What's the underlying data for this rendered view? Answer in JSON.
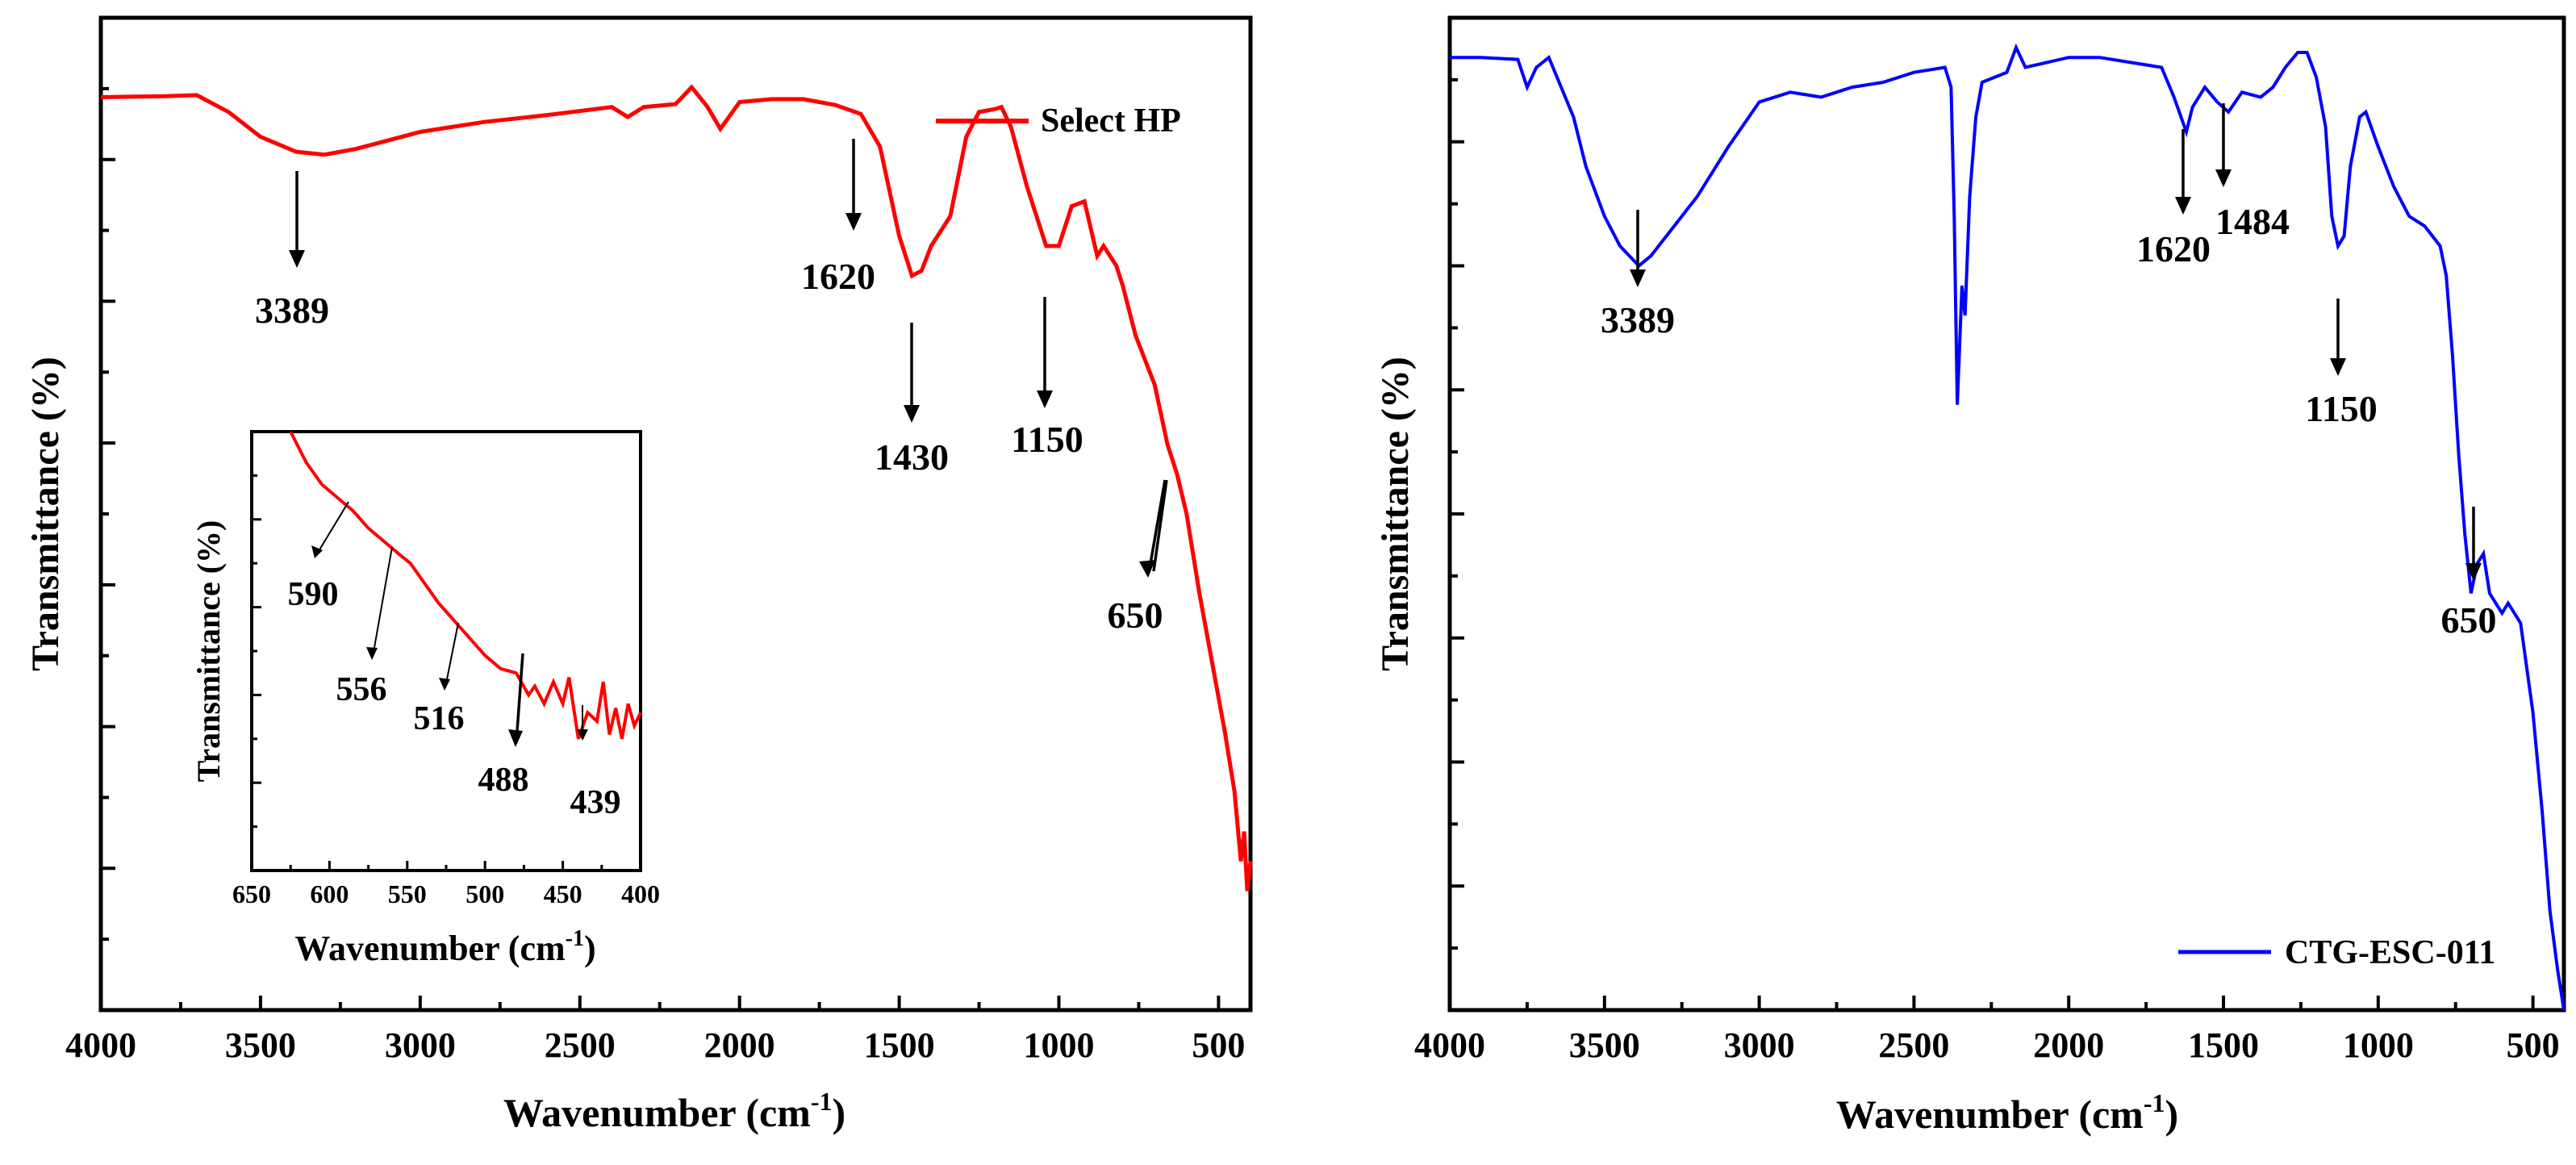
{
  "chart_data": [
    {
      "id": "left",
      "type": "line",
      "title": "",
      "xlabel": "Wavenumber (cm",
      "xlabel_sup": "-1",
      "xlabel_close": ")",
      "ylabel": "Transmittance (%)",
      "xlim": [
        4000,
        400
      ],
      "ylim": [
        0,
        100
      ],
      "x_ticks": [
        4000,
        3500,
        3000,
        2500,
        2000,
        1500,
        1000,
        500
      ],
      "x_ticklabels": [
        "4000",
        "3500",
        "3000",
        "2500",
        "2000",
        "1500",
        "1000",
        "500"
      ],
      "legend": {
        "label": "Select HP",
        "position": "top-right"
      },
      "series": [
        {
          "name": "Select HP",
          "color": "#ff0000",
          "points": [
            [
              4000,
              92
            ],
            [
              3800,
              92.1
            ],
            [
              3700,
              92.2
            ],
            [
              3600,
              90.5
            ],
            [
              3500,
              88
            ],
            [
              3389,
              86.5
            ],
            [
              3300,
              86.2
            ],
            [
              3200,
              86.8
            ],
            [
              3000,
              88.5
            ],
            [
              2800,
              89.5
            ],
            [
              2600,
              90.2
            ],
            [
              2400,
              91
            ],
            [
              2350,
              90
            ],
            [
              2300,
              91
            ],
            [
              2200,
              91.3
            ],
            [
              2150,
              93
            ],
            [
              2100,
              91
            ],
            [
              2060,
              88.8
            ],
            [
              2000,
              91.5
            ],
            [
              1900,
              91.8
            ],
            [
              1800,
              91.8
            ],
            [
              1700,
              91.2
            ],
            [
              1620,
              90.3
            ],
            [
              1560,
              87
            ],
            [
              1500,
              78
            ],
            [
              1460,
              74
            ],
            [
              1430,
              74.5
            ],
            [
              1400,
              77
            ],
            [
              1340,
              80
            ],
            [
              1290,
              88
            ],
            [
              1250,
              90.5
            ],
            [
              1200,
              90.8
            ],
            [
              1180,
              91
            ],
            [
              1150,
              89
            ],
            [
              1100,
              83
            ],
            [
              1040,
              77
            ],
            [
              1000,
              77
            ],
            [
              960,
              81
            ],
            [
              920,
              81.5
            ],
            [
              880,
              76
            ],
            [
              860,
              77
            ],
            [
              820,
              75
            ],
            [
              800,
              73
            ],
            [
              760,
              68
            ],
            [
              700,
              63
            ],
            [
              660,
              57
            ],
            [
              630,
              54
            ],
            [
              600,
              50
            ],
            [
              560,
              42
            ],
            [
              520,
              35
            ],
            [
              480,
              28
            ],
            [
              450,
              22
            ],
            [
              430,
              15
            ],
            [
              420,
              18
            ],
            [
              410,
              12
            ],
            [
              400,
              15
            ]
          ]
        }
      ],
      "annotations": [
        {
          "label": "3389",
          "x": 3389
        },
        {
          "label": "1620",
          "x": 1620
        },
        {
          "label": "1430",
          "x": 1430
        },
        {
          "label": "1150",
          "x": 1150
        },
        {
          "label": "650",
          "x": 650
        }
      ],
      "inset": {
        "type": "line",
        "xlabel": "Wavenumber (cm",
        "xlabel_sup": "-1",
        "xlabel_close": ")",
        "ylabel": "Transmittance (%)",
        "xlim": [
          650,
          400
        ],
        "ylim": [
          0,
          100
        ],
        "x_ticks": [
          650,
          600,
          550,
          500,
          450,
          400
        ],
        "x_ticklabels": [
          "650",
          "600",
          "550",
          "500",
          "450",
          "400"
        ],
        "series": [
          {
            "name": "Select HP",
            "color": "#ff0000",
            "points": [
              [
                625,
                100
              ],
              [
                615,
                93
              ],
              [
                605,
                88
              ],
              [
                595,
                85
              ],
              [
                585,
                82
              ],
              [
                575,
                78
              ],
              [
                565,
                75
              ],
              [
                555,
                72
              ],
              [
                548,
                70
              ],
              [
                540,
                66
              ],
              [
                530,
                61
              ],
              [
                520,
                57
              ],
              [
                510,
                53
              ],
              [
                500,
                49
              ],
              [
                490,
                46
              ],
              [
                480,
                45
              ],
              [
                472,
                40
              ],
              [
                468,
                42
              ],
              [
                462,
                38
              ],
              [
                456,
                43
              ],
              [
                450,
                38
              ],
              [
                446,
                44
              ],
              [
                440,
                30
              ],
              [
                434,
                36
              ],
              [
                428,
                34
              ],
              [
                424,
                43
              ],
              [
                420,
                31
              ],
              [
                416,
                37
              ],
              [
                412,
                30
              ],
              [
                408,
                38
              ],
              [
                404,
                33
              ],
              [
                400,
                36
              ]
            ]
          }
        ],
        "annotations": [
          {
            "label": "590",
            "x": 590
          },
          {
            "label": "556",
            "x": 556
          },
          {
            "label": "516",
            "x": 516
          },
          {
            "label": "488",
            "x": 488
          },
          {
            "label": "439",
            "x": 439
          }
        ]
      }
    },
    {
      "id": "right",
      "type": "line",
      "title": "",
      "xlabel": "Wavenumber (cm",
      "xlabel_sup": "-1",
      "xlabel_close": ")",
      "ylabel": "Transmittance (%)",
      "xlim": [
        4000,
        400
      ],
      "ylim": [
        0,
        100
      ],
      "x_ticks": [
        4000,
        3500,
        3000,
        2500,
        2000,
        1500,
        1000,
        500
      ],
      "x_ticklabels": [
        "4000",
        "3500",
        "3000",
        "2500",
        "2000",
        "1500",
        "1000",
        "500"
      ],
      "legend": {
        "label": "CTG-ESC-011",
        "position": "bottom-right"
      },
      "series": [
        {
          "name": "CTG-ESC-011",
          "color": "#0000ff",
          "points": [
            [
              4000,
              96
            ],
            [
              3900,
              96
            ],
            [
              3780,
              95.8
            ],
            [
              3750,
              93
            ],
            [
              3720,
              95
            ],
            [
              3680,
              96
            ],
            [
              3640,
              93
            ],
            [
              3600,
              90
            ],
            [
              3560,
              85
            ],
            [
              3500,
              80
            ],
            [
              3450,
              77
            ],
            [
              3389,
              75
            ],
            [
              3350,
              76
            ],
            [
              3300,
              78
            ],
            [
              3200,
              82
            ],
            [
              3100,
              87
            ],
            [
              3000,
              91.5
            ],
            [
              2900,
              92.5
            ],
            [
              2800,
              92
            ],
            [
              2700,
              93
            ],
            [
              2600,
              93.5
            ],
            [
              2500,
              94.5
            ],
            [
              2400,
              95
            ],
            [
              2380,
              93
            ],
            [
              2370,
              80
            ],
            [
              2360,
              61
            ],
            [
              2345,
              73
            ],
            [
              2335,
              70
            ],
            [
              2320,
              82
            ],
            [
              2300,
              90
            ],
            [
              2280,
              93.5
            ],
            [
              2200,
              94.5
            ],
            [
              2170,
              97
            ],
            [
              2140,
              95
            ],
            [
              2000,
              96
            ],
            [
              1900,
              96
            ],
            [
              1800,
              95.5
            ],
            [
              1700,
              95
            ],
            [
              1660,
              92
            ],
            [
              1620,
              88.5
            ],
            [
              1600,
              91
            ],
            [
              1560,
              93
            ],
            [
              1520,
              91.5
            ],
            [
              1484,
              90.5
            ],
            [
              1440,
              92.5
            ],
            [
              1380,
              92
            ],
            [
              1340,
              93
            ],
            [
              1300,
              95
            ],
            [
              1260,
              96.5
            ],
            [
              1230,
              96.5
            ],
            [
              1200,
              94
            ],
            [
              1170,
              89
            ],
            [
              1150,
              80
            ],
            [
              1130,
              77
            ],
            [
              1110,
              78
            ],
            [
              1090,
              85
            ],
            [
              1060,
              90
            ],
            [
              1040,
              90.5
            ],
            [
              1000,
              87
            ],
            [
              950,
              83
            ],
            [
              900,
              80
            ],
            [
              850,
              79
            ],
            [
              800,
              77
            ],
            [
              780,
              74
            ],
            [
              760,
              66
            ],
            [
              740,
              56
            ],
            [
              720,
              48
            ],
            [
              700,
              42
            ],
            [
              680,
              45
            ],
            [
              660,
              46
            ],
            [
              640,
              42
            ],
            [
              620,
              41
            ],
            [
              600,
              40
            ],
            [
              580,
              41
            ],
            [
              560,
              40
            ],
            [
              540,
              39
            ],
            [
              500,
              30
            ],
            [
              470,
              20
            ],
            [
              445,
              10
            ],
            [
              420,
              4
            ],
            [
              400,
              0
            ]
          ]
        }
      ],
      "annotations": [
        {
          "label": "3389",
          "x": 3389
        },
        {
          "label": "1620",
          "x": 1620
        },
        {
          "label": "1484",
          "x": 1484
        },
        {
          "label": "1150",
          "x": 1150
        },
        {
          "label": "650",
          "x": 650
        }
      ]
    }
  ]
}
